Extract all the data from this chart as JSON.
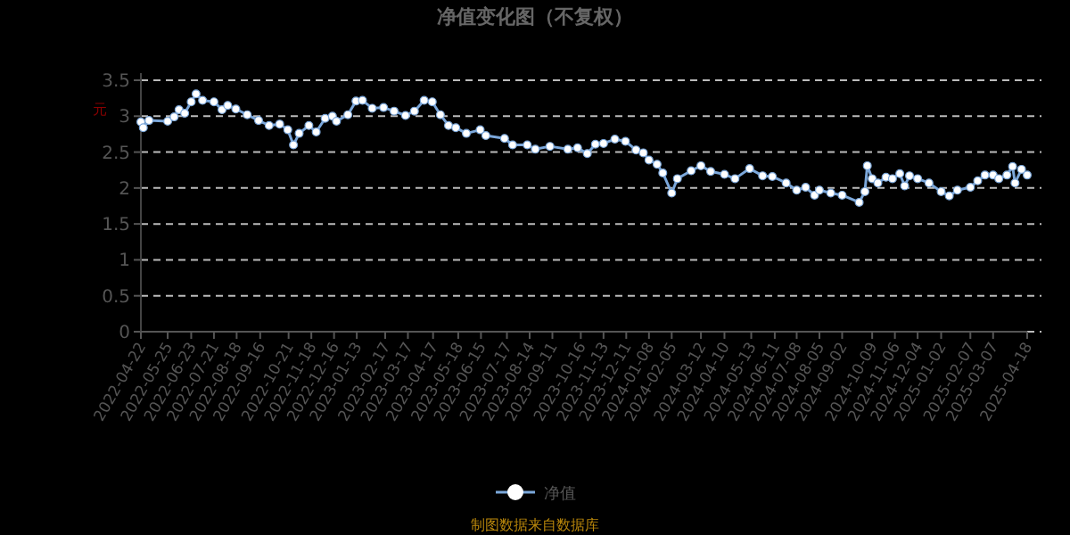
{
  "chart_data": {
    "type": "line",
    "title": "净值变化图（不复权）",
    "ylabel": "元",
    "x": [
      "2022-04-22",
      "2022-04-25",
      "2022-05-02",
      "2022-05-25",
      "2022-06-02",
      "2022-06-08",
      "2022-06-15",
      "2022-06-23",
      "2022-06-29",
      "2022-07-07",
      "2022-07-21",
      "2022-07-31",
      "2022-08-07",
      "2022-08-17",
      "2022-08-31",
      "2022-09-14",
      "2022-09-27",
      "2022-10-10",
      "2022-10-20",
      "2022-10-27",
      "2022-11-03",
      "2022-11-15",
      "2022-11-24",
      "2022-12-05",
      "2022-12-14",
      "2022-12-19",
      "2023-01-02",
      "2023-01-12",
      "2023-01-20",
      "2023-02-01",
      "2023-02-15",
      "2023-02-28",
      "2023-03-14",
      "2023-03-25",
      "2023-04-06",
      "2023-04-16",
      "2023-04-26",
      "2023-05-06",
      "2023-05-15",
      "2023-05-28",
      "2023-06-14",
      "2023-06-21",
      "2023-07-14",
      "2023-07-24",
      "2023-08-11",
      "2023-08-21",
      "2023-09-08",
      "2023-09-30",
      "2023-10-12",
      "2023-10-24",
      "2023-11-03",
      "2023-11-13",
      "2023-11-27",
      "2023-12-10",
      "2023-12-23",
      "2024-01-01",
      "2024-01-08",
      "2024-01-18",
      "2024-01-25",
      "2024-02-05",
      "2024-02-12",
      "2024-02-29",
      "2024-03-12",
      "2024-03-24",
      "2024-04-10",
      "2024-04-23",
      "2024-05-11",
      "2024-05-27",
      "2024-06-08",
      "2024-06-25",
      "2024-07-08",
      "2024-07-19",
      "2024-07-30",
      "2024-08-05",
      "2024-08-19",
      "2024-09-02",
      "2024-09-23",
      "2024-09-30",
      "2024-10-03",
      "2024-10-09",
      "2024-10-16",
      "2024-10-26",
      "2024-11-03",
      "2024-11-12",
      "2024-11-18",
      "2024-11-24",
      "2024-12-04",
      "2024-12-18",
      "2025-01-02",
      "2025-01-12",
      "2025-01-22",
      "2025-02-07",
      "2025-02-16",
      "2025-02-25",
      "2025-03-07",
      "2025-03-14",
      "2025-03-24",
      "2025-03-31",
      "2025-04-03",
      "2025-04-11",
      "2025-04-18"
    ],
    "series": [
      {
        "name": "净值",
        "color": "#7ba7da",
        "values": [
          2.92,
          2.84,
          2.94,
          2.93,
          2.99,
          3.09,
          3.04,
          3.2,
          3.31,
          3.22,
          3.2,
          3.09,
          3.15,
          3.1,
          3.02,
          2.94,
          2.87,
          2.89,
          2.81,
          2.6,
          2.76,
          2.87,
          2.78,
          2.97,
          3.0,
          2.93,
          3.02,
          3.21,
          3.22,
          3.11,
          3.12,
          3.07,
          3.01,
          3.07,
          3.22,
          3.2,
          3.02,
          2.87,
          2.84,
          2.76,
          2.81,
          2.73,
          2.69,
          2.6,
          2.6,
          2.54,
          2.58,
          2.54,
          2.56,
          2.48,
          2.61,
          2.62,
          2.68,
          2.65,
          2.53,
          2.49,
          2.39,
          2.33,
          2.21,
          1.93,
          2.13,
          2.24,
          2.31,
          2.23,
          2.19,
          2.13,
          2.27,
          2.17,
          2.16,
          2.07,
          1.97,
          2.01,
          1.9,
          1.97,
          1.93,
          1.9,
          1.8,
          1.95,
          2.31,
          2.13,
          2.07,
          2.15,
          2.13,
          2.2,
          2.03,
          2.17,
          2.13,
          2.07,
          1.95,
          1.89,
          1.97,
          2.01,
          2.1,
          2.18,
          2.18,
          2.13,
          2.18,
          2.3,
          2.07,
          2.26,
          2.18
        ]
      }
    ],
    "xlim": [
      "2022-04-22",
      "2025-04-18"
    ],
    "xticks": [
      "2022-04-22",
      "2022-05-25",
      "2022-06-23",
      "2022-07-21",
      "2022-08-18",
      "2022-09-16",
      "2022-10-21",
      "2022-11-18",
      "2022-12-16",
      "2023-01-13",
      "2023-02-17",
      "2023-03-17",
      "2023-04-17",
      "2023-05-18",
      "2023-06-15",
      "2023-07-17",
      "2023-08-14",
      "2023-09-11",
      "2023-10-16",
      "2023-11-13",
      "2023-12-11",
      "2024-01-08",
      "2024-02-05",
      "2024-03-12",
      "2024-04-10",
      "2024-05-13",
      "2024-06-11",
      "2024-07-08",
      "2024-08-05",
      "2024-09-02",
      "2024-10-09",
      "2024-11-06",
      "2024-12-04",
      "2025-01-02",
      "2025-02-07",
      "2025-03-07",
      "2025-04-18"
    ],
    "ylim": [
      0,
      3.5
    ],
    "yticks": [
      0,
      0.5,
      1,
      1.5,
      2,
      2.5,
      3,
      3.5
    ],
    "grid": "y",
    "legend": "bottom",
    "marker": "circle",
    "line_style": "solid",
    "annotations": [
      "制图数据来自数据库"
    ]
  }
}
